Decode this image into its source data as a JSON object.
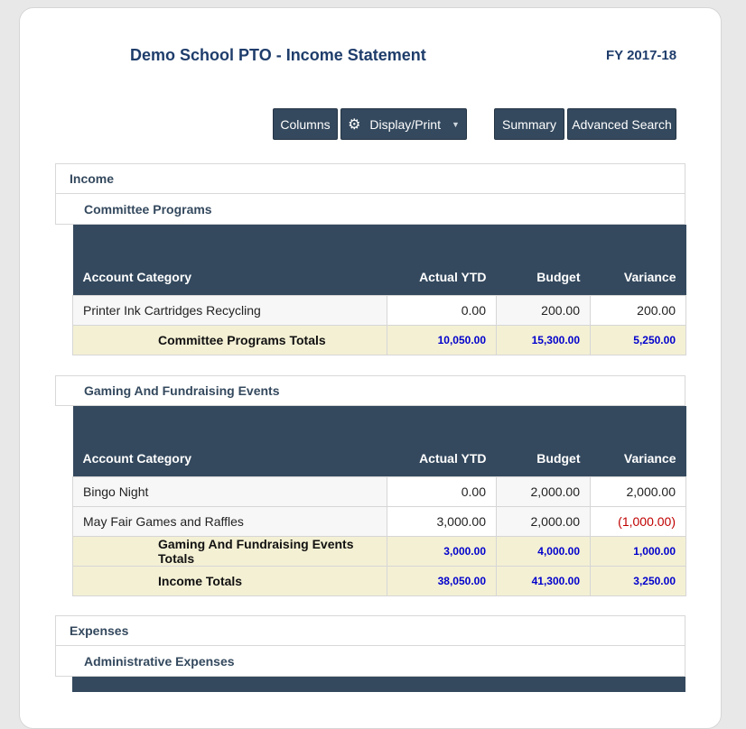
{
  "header": {
    "title": "Demo School PTO - Income Statement",
    "fiscal_year": "FY 2017-18"
  },
  "toolbar": {
    "columns_label": "Columns",
    "display_print_label": "Display/Print",
    "summary_label": "Summary",
    "advanced_search_label": "Advanced Search"
  },
  "columns": {
    "account_category": "Account Category",
    "actual_ytd": "Actual YTD",
    "budget": "Budget",
    "variance": "Variance"
  },
  "income": {
    "label": "Income",
    "committee": {
      "label": "Committee Programs",
      "rows": [
        {
          "name": "Printer Ink Cartridges Recycling",
          "actual": "0.00",
          "budget": "200.00",
          "variance": "200.00"
        }
      ],
      "totals": {
        "label": "Committee Programs Totals",
        "actual": "10,050.00",
        "budget": "15,300.00",
        "variance": "5,250.00"
      }
    },
    "gaming": {
      "label": "Gaming And Fundraising Events",
      "rows": [
        {
          "name": "Bingo Night",
          "actual": "0.00",
          "budget": "2,000.00",
          "variance": "2,000.00"
        },
        {
          "name": "May Fair Games and Raffles",
          "actual": "3,000.00",
          "budget": "2,000.00",
          "variance": "(1,000.00)"
        }
      ],
      "totals": {
        "label": "Gaming And Fundraising Events Totals",
        "actual": "3,000.00",
        "budget": "4,000.00",
        "variance": "1,000.00"
      }
    },
    "totals": {
      "label": "Income Totals",
      "actual": "38,050.00",
      "budget": "41,300.00",
      "variance": "3,250.00"
    }
  },
  "expenses": {
    "label": "Expenses",
    "administrative": {
      "label": "Administrative Expenses"
    }
  },
  "colors": {
    "header_bg": "#34495e",
    "total_row_bg": "#f4f0d4",
    "total_value": "#0000cc",
    "negative": "#c00000"
  },
  "icons": {
    "display_print": "gear-icon",
    "dropdown": "caret-down-icon"
  }
}
